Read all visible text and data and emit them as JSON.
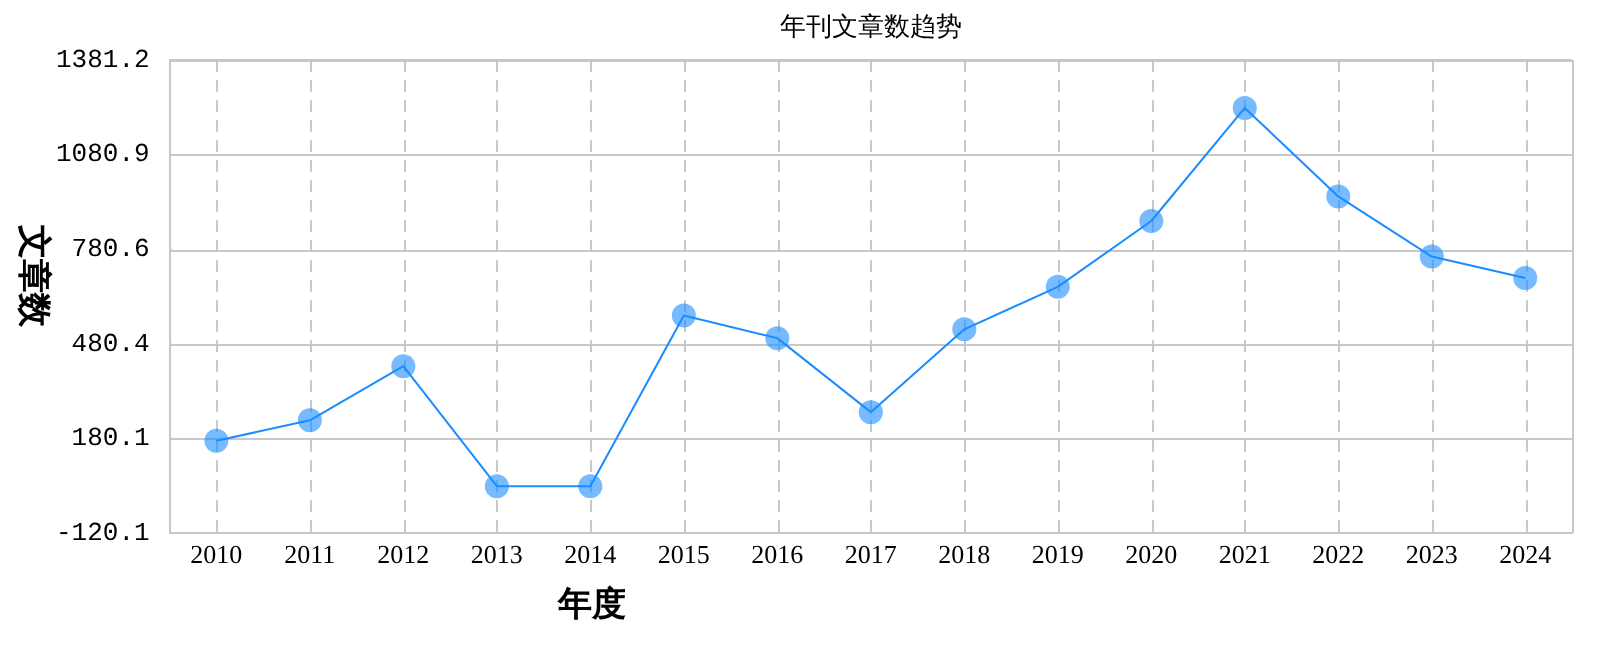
{
  "chart_data": {
    "type": "line",
    "title": "年刊文章数趋势",
    "xlabel": "年度",
    "ylabel": "文章数",
    "categories": [
      "2010",
      "2011",
      "2012",
      "2013",
      "2014",
      "2015",
      "2016",
      "2017",
      "2018",
      "2019",
      "2020",
      "2021",
      "2022",
      "2023",
      "2024"
    ],
    "series": [
      {
        "color": "#1a8cff",
        "values": [
          172,
          237,
          409,
          28,
          28,
          570,
          498,
          263,
          526,
          661,
          870,
          1229,
          948,
          757,
          689
        ]
      }
    ],
    "ylim": [
      -120.1,
      1381.2
    ],
    "yticks": [
      -120.1,
      180.1,
      480.4,
      780.6,
      1080.9,
      1381.2
    ],
    "grid": true,
    "legend": false,
    "marker": "circle",
    "line_style": "solid"
  }
}
